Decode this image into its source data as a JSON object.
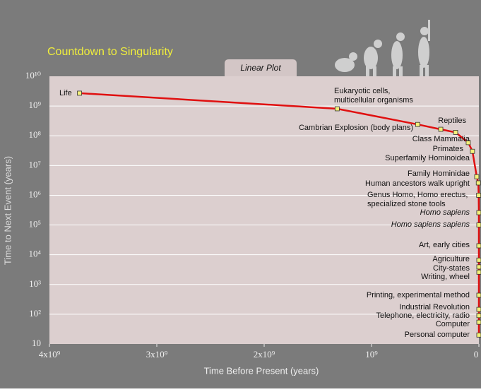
{
  "chart_data": {
    "type": "line",
    "title": "Countdown to Singularity",
    "plot_label": "Linear Plot",
    "x_label": "Time Before Present (years)",
    "y_label": "Time to Next Event (years)",
    "xlim": [
      4000000000,
      0
    ],
    "xticks": [
      {
        "value": 4000000000,
        "label": "4x10⁹"
      },
      {
        "value": 3000000000,
        "label": "3x10⁹"
      },
      {
        "value": 2000000000,
        "label": "2x10⁹"
      },
      {
        "value": 1000000000,
        "label": "10⁹"
      },
      0
    ],
    "ylim": [
      10,
      10000000000
    ],
    "y_scale": "log",
    "yticks": [
      {
        "value": 10000000000,
        "label": "10¹⁰"
      },
      {
        "value": 1000000000,
        "label": "10⁹"
      },
      {
        "value": 100000000,
        "label": "10⁸"
      },
      {
        "value": 10000000,
        "label": "10⁷"
      },
      {
        "value": 1000000,
        "label": "10⁶"
      },
      {
        "value": 100000,
        "label": "10⁵"
      },
      {
        "value": 10000,
        "label": "10⁴"
      },
      {
        "value": 1000,
        "label": "10³"
      },
      {
        "value": 100,
        "label": "10²"
      },
      10
    ],
    "grid": true,
    "line_color": "#e01010",
    "marker_color": "#f3f07a",
    "labels": [
      "Life",
      [
        "Eukaryotic cells,",
        "multicellular organisms"
      ],
      "Cambrian Explosion (body plans)",
      "Reptiles",
      "Class Mammalia",
      "Primates",
      "Superfamily Hominoidea",
      "Family Hominidae",
      "Human ancestors walk upright",
      [
        "Genus Homo, Homo erectus,",
        "specialized stone tools"
      ],
      "Homo sapiens",
      "Homo sapiens sapiens",
      "Art, early cities",
      "Agriculture",
      "City-states",
      "Writing, wheel",
      "Printing, experimental method",
      "Industrial Revolution",
      "Telephone, electricity, radio",
      "Computer",
      "Personal computer"
    ],
    "x": [
      3720000000,
      1320000000,
      570000000,
      355000000,
      217000000,
      99000000,
      60000000,
      20000000,
      5000000,
      2000000,
      300000,
      100000,
      20000,
      10000,
      5000,
      4000,
      500,
      200,
      100,
      50,
      20
    ],
    "values": [
      2700000000,
      810000000,
      240000000,
      165000000,
      130000000,
      59000000,
      30000000,
      4200000,
      2600000,
      1000000,
      260000,
      100000,
      20000,
      6600,
      3900,
      2600,
      435,
      145,
      90,
      54,
      20
    ]
  }
}
